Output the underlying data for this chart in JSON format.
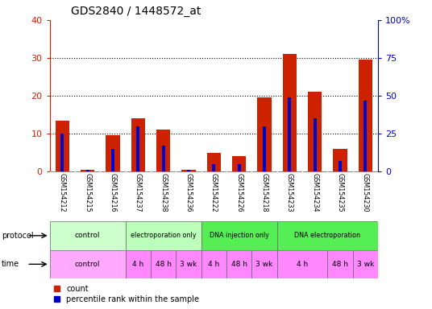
{
  "title": "GDS2840 / 1448572_at",
  "samples": [
    "GSM154212",
    "GSM154215",
    "GSM154216",
    "GSM154237",
    "GSM154238",
    "GSM154236",
    "GSM154222",
    "GSM154226",
    "GSM154218",
    "GSM154233",
    "GSM154234",
    "GSM154235",
    "GSM154230"
  ],
  "count_values": [
    13.5,
    0.5,
    9.5,
    14.0,
    11.0,
    0.5,
    5.0,
    4.0,
    19.5,
    31.0,
    21.0,
    6.0,
    29.5
  ],
  "pct_values": [
    25,
    1,
    15,
    30,
    17,
    1,
    5,
    5,
    30,
    49,
    35,
    7,
    47
  ],
  "left_ylim": [
    0,
    40
  ],
  "right_ylim": [
    0,
    100
  ],
  "left_yticks": [
    0,
    10,
    20,
    30,
    40
  ],
  "right_yticks": [
    0,
    25,
    50,
    75,
    100
  ],
  "right_yticklabels": [
    "0",
    "25",
    "50",
    "75",
    "100%"
  ],
  "bar_color": "#cc2200",
  "pct_color": "#0000cc",
  "bg_color": "#ffffff",
  "label_bg": "#cccccc",
  "grid_color": "#000000",
  "left_tick_color": "#cc2200",
  "right_tick_color": "#0000cc",
  "proto_groups": [
    {
      "label": "control",
      "start": 0,
      "end": 2,
      "color": "#ccffcc"
    },
    {
      "label": "electroporation only",
      "start": 3,
      "end": 5,
      "color": "#bbffbb"
    },
    {
      "label": "DNA injection only",
      "start": 6,
      "end": 8,
      "color": "#55ee55"
    },
    {
      "label": "DNA electroporation",
      "start": 9,
      "end": 12,
      "color": "#55ee55"
    }
  ],
  "time_groups": [
    {
      "label": "control",
      "start": 0,
      "end": 2,
      "color": "#ffaaff"
    },
    {
      "label": "4 h",
      "start": 3,
      "end": 3,
      "color": "#ff88ff"
    },
    {
      "label": "48 h",
      "start": 4,
      "end": 4,
      "color": "#ff88ff"
    },
    {
      "label": "3 wk",
      "start": 5,
      "end": 5,
      "color": "#ff88ff"
    },
    {
      "label": "4 h",
      "start": 6,
      "end": 6,
      "color": "#ff88ff"
    },
    {
      "label": "48 h",
      "start": 7,
      "end": 7,
      "color": "#ff88ff"
    },
    {
      "label": "3 wk",
      "start": 8,
      "end": 8,
      "color": "#ff88ff"
    },
    {
      "label": "4 h",
      "start": 9,
      "end": 10,
      "color": "#ff88ff"
    },
    {
      "label": "48 h",
      "start": 11,
      "end": 11,
      "color": "#ff88ff"
    },
    {
      "label": "3 wk",
      "start": 12,
      "end": 12,
      "color": "#ff88ff"
    }
  ],
  "bar_width": 0.55,
  "pct_bar_width": 0.12,
  "legend_count_label": "count",
  "legend_pct_label": "percentile rank within the sample"
}
